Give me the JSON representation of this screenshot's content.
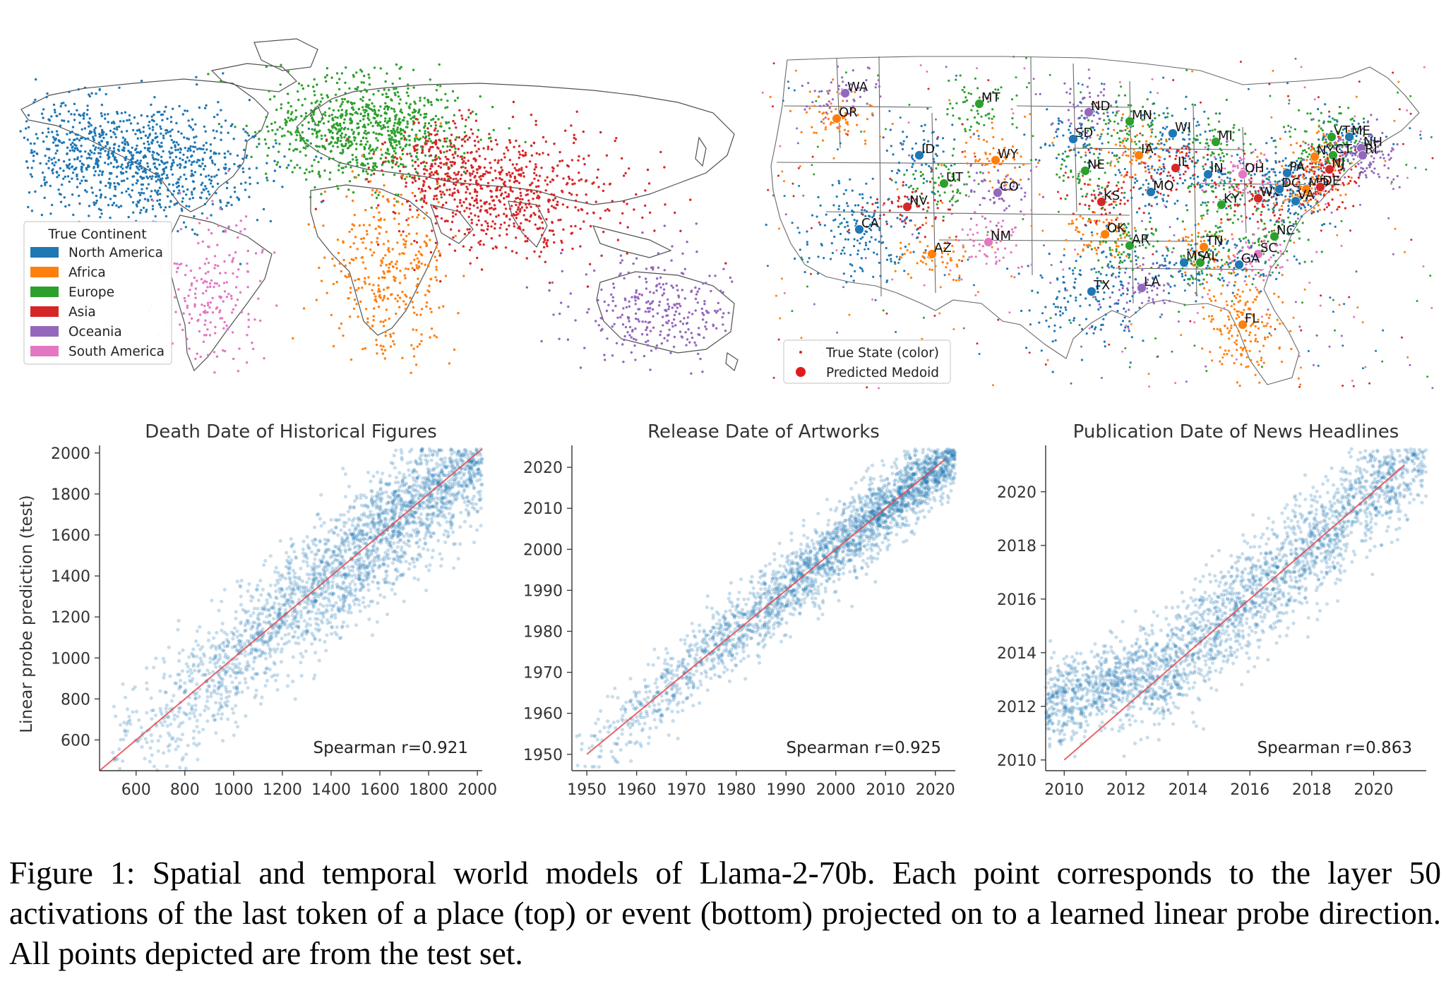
{
  "world_map": {
    "legend_title": "True Continent",
    "legend_items": [
      {
        "label": "North America",
        "color": "#1f77b4"
      },
      {
        "label": "Africa",
        "color": "#ff7f0e"
      },
      {
        "label": "Europe",
        "color": "#2ca02c"
      },
      {
        "label": "Asia",
        "color": "#d62728"
      },
      {
        "label": "Oceania",
        "color": "#9467bd"
      },
      {
        "label": "South America",
        "color": "#e377c2"
      }
    ]
  },
  "us_map": {
    "legend_items": [
      {
        "label": "True State (color)",
        "color": "#d62728",
        "marker": "small-dot"
      },
      {
        "label": "Predicted Medoid",
        "color": "#e31a1c",
        "marker": "large-dot"
      }
    ],
    "states": [
      {
        "label": "WA",
        "color": "#9467bd"
      },
      {
        "label": "OR",
        "color": "#ff7f0e"
      },
      {
        "label": "MT",
        "color": "#2ca02c"
      },
      {
        "label": "ND",
        "color": "#9467bd"
      },
      {
        "label": "MN",
        "color": "#2ca02c"
      },
      {
        "label": "WI",
        "color": "#1f77b4"
      },
      {
        "label": "MI",
        "color": "#2ca02c"
      },
      {
        "label": "VT",
        "color": "#2ca02c"
      },
      {
        "label": "ME",
        "color": "#1f77b4"
      },
      {
        "label": "NH",
        "color": "#9467bd"
      },
      {
        "label": "SD",
        "color": "#1f77b4"
      },
      {
        "label": "ID",
        "color": "#1f77b4"
      },
      {
        "label": "WY",
        "color": "#ff7f0e"
      },
      {
        "label": "IA",
        "color": "#ff7f0e"
      },
      {
        "label": "NE",
        "color": "#2ca02c"
      },
      {
        "label": "IL",
        "color": "#d62728"
      },
      {
        "label": "IN",
        "color": "#1f77b4"
      },
      {
        "label": "OH",
        "color": "#e377c2"
      },
      {
        "label": "PA",
        "color": "#1f77b4"
      },
      {
        "label": "NY",
        "color": "#ff7f0e"
      },
      {
        "label": "CT",
        "color": "#2ca02c"
      },
      {
        "label": "RI",
        "color": "#9467bd"
      },
      {
        "label": "NJ",
        "color": "#d62728"
      },
      {
        "label": "UT",
        "color": "#2ca02c"
      },
      {
        "label": "CO",
        "color": "#9467bd"
      },
      {
        "label": "NV",
        "color": "#d62728"
      },
      {
        "label": "KS",
        "color": "#d62728"
      },
      {
        "label": "MO",
        "color": "#1f77b4"
      },
      {
        "label": "KY",
        "color": "#2ca02c"
      },
      {
        "label": "WV",
        "color": "#d62728"
      },
      {
        "label": "DC",
        "color": "#1f77b4"
      },
      {
        "label": "MD",
        "color": "#ff7f0e"
      },
      {
        "label": "DE",
        "color": "#d62728"
      },
      {
        "label": "VA",
        "color": "#1f77b4"
      },
      {
        "label": "CA",
        "color": "#1f77b4"
      },
      {
        "label": "AZ",
        "color": "#ff7f0e"
      },
      {
        "label": "NM",
        "color": "#e377c2"
      },
      {
        "label": "OK",
        "color": "#ff7f0e"
      },
      {
        "label": "AR",
        "color": "#2ca02c"
      },
      {
        "label": "TN",
        "color": "#ff7f0e"
      },
      {
        "label": "NC",
        "color": "#2ca02c"
      },
      {
        "label": "SC",
        "color": "#e377c2"
      },
      {
        "label": "MS",
        "color": "#1f77b4"
      },
      {
        "label": "AL",
        "color": "#2ca02c"
      },
      {
        "label": "GA",
        "color": "#1f77b4"
      },
      {
        "label": "LA",
        "color": "#9467bd"
      },
      {
        "label": "TX",
        "color": "#1f77b4"
      },
      {
        "label": "FL",
        "color": "#ff7f0e"
      }
    ]
  },
  "shared_ylabel": "Linear probe prediction (test)",
  "chart_data": [
    {
      "type": "scatter",
      "title": "Death Date of Historical Figures",
      "xlim": [
        450,
        2020
      ],
      "ylim": [
        450,
        2020
      ],
      "xticks": [
        600,
        800,
        1000,
        1200,
        1400,
        1600,
        1800,
        2000
      ],
      "yticks": [
        600,
        800,
        1000,
        1200,
        1400,
        1600,
        1800,
        2000
      ],
      "ylabel": "Linear probe prediction (test)",
      "annotation": "Spearman r=0.921",
      "spearman_r": 0.921,
      "point_color": "#1f77b4",
      "reference_line": {
        "from": [
          450,
          450
        ],
        "to": [
          2020,
          2020
        ],
        "color": "#e8464a"
      }
    },
    {
      "type": "scatter",
      "title": "Release Date of Artworks",
      "xlim": [
        1947,
        2024
      ],
      "ylim": [
        1946,
        2024.5
      ],
      "xticks": [
        1950,
        1960,
        1970,
        1980,
        1990,
        2000,
        2010,
        2020
      ],
      "yticks": [
        1950,
        1960,
        1970,
        1980,
        1990,
        2000,
        2010,
        2020
      ],
      "annotation": "Spearman r=0.925",
      "spearman_r": 0.925,
      "point_color": "#1f77b4",
      "reference_line": {
        "from": [
          1950,
          1950
        ],
        "to": [
          2022,
          2022
        ],
        "color": "#e8464a"
      }
    },
    {
      "type": "scatter",
      "title": "Publication Date of News Headlines",
      "xlim": [
        2009.4,
        2021.7
      ],
      "ylim": [
        2009.6,
        2021.6
      ],
      "xticks": [
        2010,
        2012,
        2014,
        2016,
        2018,
        2020
      ],
      "yticks": [
        2010,
        2012,
        2014,
        2016,
        2018,
        2020
      ],
      "annotation": "Spearman r=0.863",
      "spearman_r": 0.863,
      "point_color": "#1f77b4",
      "reference_line": {
        "from": [
          2010,
          2010
        ],
        "to": [
          2021,
          2021
        ],
        "color": "#e8464a"
      }
    }
  ],
  "caption": "Figure 1: Spatial and temporal world models of Llama-2-70b. Each point corresponds to the layer 50 activations of the last token of a place (top) or event (bottom) projected on to a learned linear probe direction. All points depicted are from the test set."
}
